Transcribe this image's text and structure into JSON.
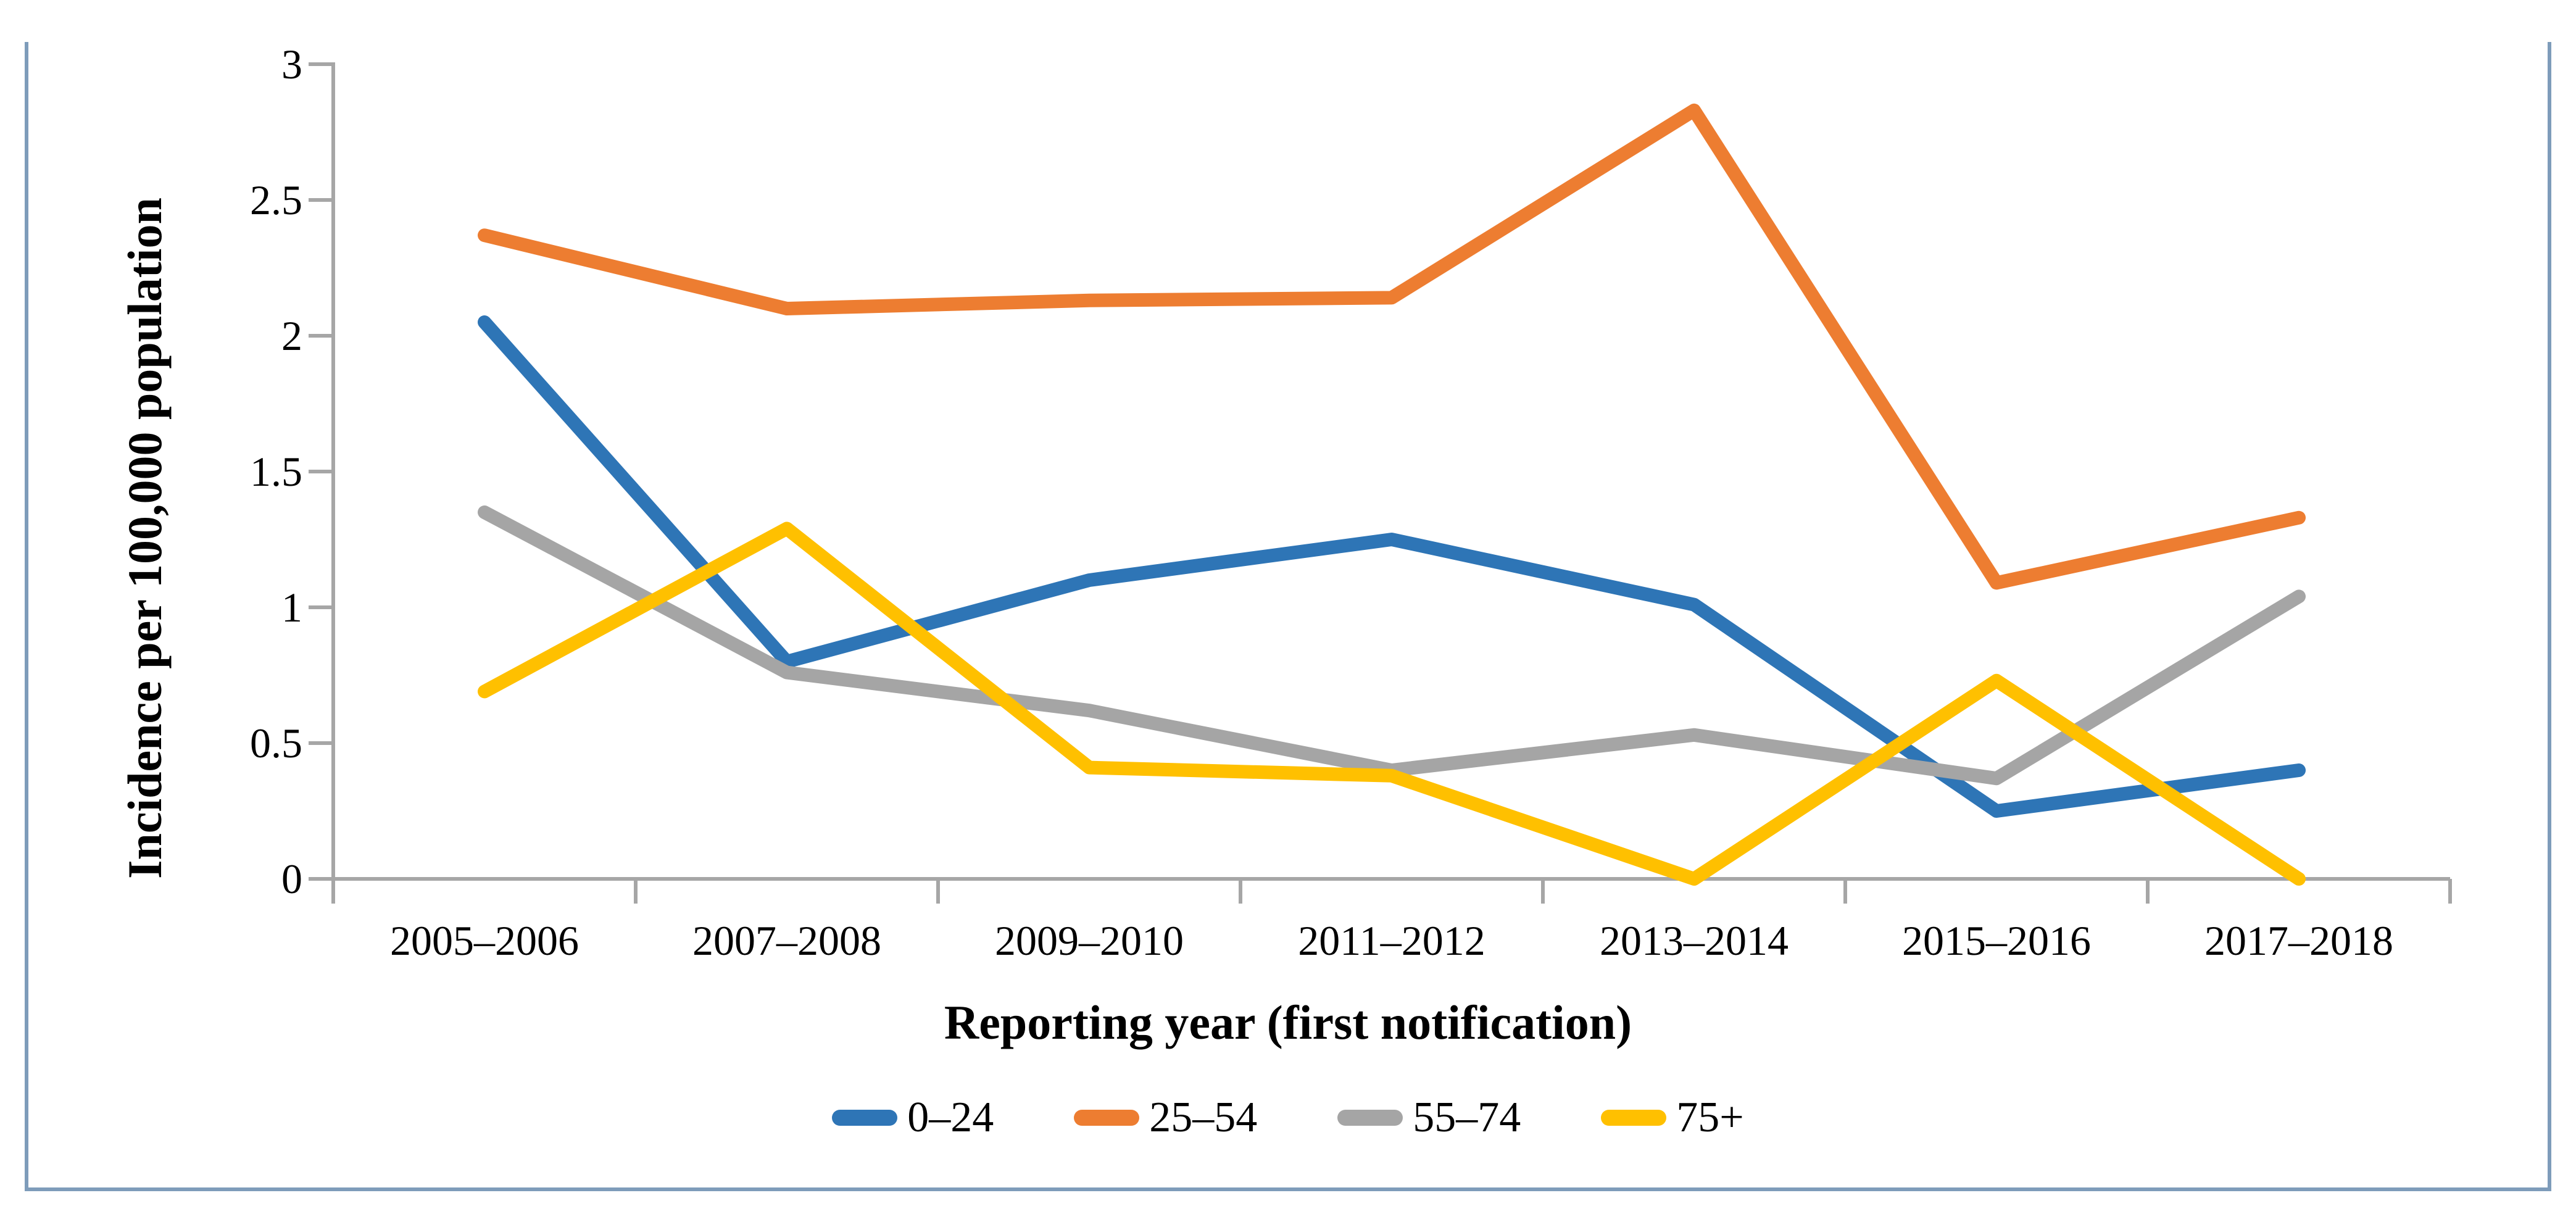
{
  "figure": {
    "border_color": "#7E9CBA",
    "background": "#FFFFFF"
  },
  "chart_data": {
    "type": "line",
    "title": "",
    "xlabel": "Reporting year (first notification)",
    "ylabel": "Incidence per 100,000 population",
    "categories": [
      "2005–2006",
      "2007–2008",
      "2009–2010",
      "2011–2012",
      "2013–2014",
      "2015–2016",
      "2017–2018"
    ],
    "series": [
      {
        "name": "0–24",
        "color": "#2E75B6",
        "values": [
          2.05,
          0.8,
          1.1,
          1.25,
          1.01,
          0.25,
          0.4
        ]
      },
      {
        "name": "25–54",
        "color": "#ED7D31",
        "values": [
          2.37,
          2.1,
          2.13,
          2.14,
          2.83,
          1.09,
          1.33
        ]
      },
      {
        "name": "55–74",
        "color": "#A5A5A5",
        "values": [
          1.35,
          0.76,
          0.62,
          0.4,
          0.53,
          0.37,
          1.04
        ]
      },
      {
        "name": "75+",
        "color": "#FFC000",
        "values": [
          0.69,
          1.29,
          0.41,
          0.38,
          0.0,
          0.73,
          0.0
        ]
      }
    ],
    "ylim": [
      0,
      3
    ],
    "yticks": [
      "0",
      "0.5",
      "1",
      "1.5",
      "2",
      "2.5",
      "3"
    ],
    "grid": false,
    "legend_position": "bottom",
    "axis_color": "#A6A6A6",
    "text_color": "#000000"
  }
}
